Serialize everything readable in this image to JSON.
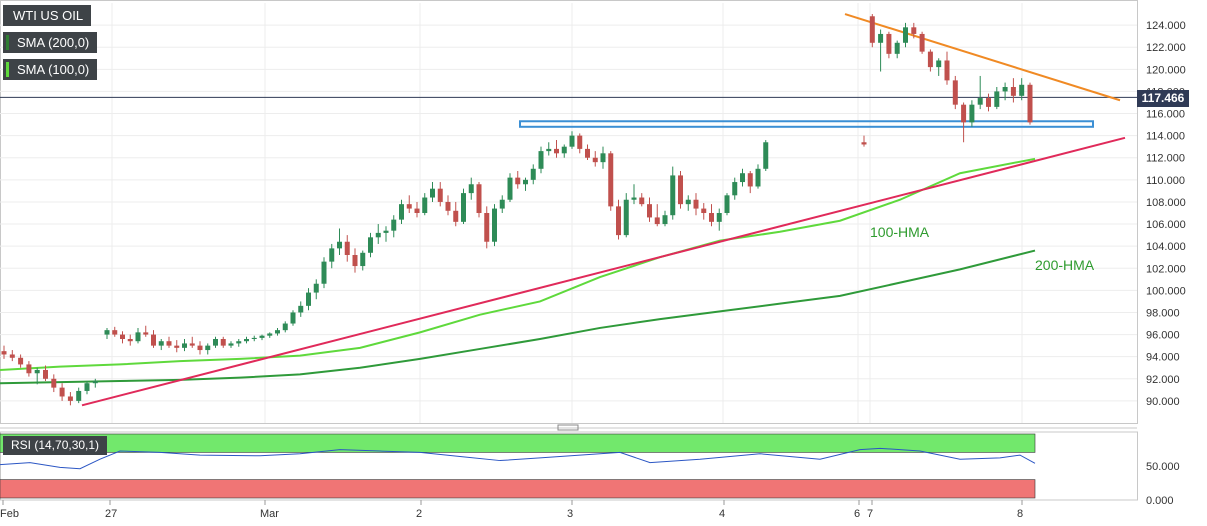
{
  "legend": {
    "symbol": "WTI US OIL",
    "sma200": "SMA (200,0)",
    "sma100": "SMA (100,0)",
    "sma200_color": "#2f7d32",
    "sma100_color": "#5fd93c"
  },
  "current_price": "117.466",
  "rsi_label": "RSI (14,70,30,1)",
  "annotations": {
    "hma100": "100-HMA",
    "hma200": "200-HMA"
  },
  "colors": {
    "up": "#2e8b57",
    "down": "#c0504d",
    "support_zone": "#3b8fd4",
    "resistance_line": "#f08a24",
    "trend_line": "#e02a5a",
    "rsi_line": "#2b56c4",
    "rsi_overbought": "#72e86c",
    "rsi_oversold": "#f07575"
  },
  "chart_data": [
    {
      "type": "line",
      "title": "WTI US OIL",
      "ylim": [
        88.0,
        126.0
      ],
      "y_ticks": [
        "124.000",
        "122.000",
        "120.000",
        "118.000",
        "116.000",
        "114.000",
        "112.000",
        "110.000",
        "108.000",
        "106.000",
        "104.000",
        "102.000",
        "100.000",
        "98.000",
        "96.000",
        "94.000",
        "92.000",
        "90.000"
      ],
      "x_ticks": [
        "Feb",
        "27",
        "Mar",
        "2",
        "3",
        "4",
        "6",
        "7",
        "8"
      ],
      "series": [
        {
          "name": "100-HMA",
          "x": [
            0,
            60,
            120,
            180,
            240,
            300,
            360,
            420,
            480,
            540,
            600,
            660,
            720,
            780,
            840,
            900,
            960,
            1035
          ],
          "values": [
            92.8,
            93.1,
            93.3,
            93.6,
            93.8,
            94.1,
            94.8,
            96.2,
            97.8,
            99.0,
            101.2,
            103.0,
            104.5,
            105.3,
            106.3,
            108.2,
            110.6,
            111.9
          ]
        },
        {
          "name": "200-HMA",
          "x": [
            0,
            60,
            120,
            180,
            240,
            300,
            360,
            420,
            480,
            540,
            600,
            660,
            720,
            780,
            840,
            900,
            960,
            1035
          ],
          "values": [
            91.6,
            91.7,
            91.8,
            91.9,
            92.1,
            92.4,
            93.0,
            93.8,
            94.7,
            95.6,
            96.6,
            97.4,
            98.1,
            98.8,
            99.5,
            100.7,
            101.9,
            103.6
          ]
        },
        {
          "name": "RSI",
          "x": [
            0,
            30,
            60,
            80,
            100,
            120,
            160,
            200,
            260,
            300,
            340,
            380,
            420,
            460,
            500,
            540,
            580,
            620,
            650,
            700,
            760,
            820,
            860,
            880,
            920,
            960,
            1000,
            1020,
            1035
          ],
          "values": [
            52,
            55,
            48,
            46,
            60,
            72,
            70,
            66,
            65,
            68,
            74,
            72,
            70,
            64,
            58,
            62,
            66,
            70,
            55,
            60,
            68,
            60,
            74,
            76,
            72,
            60,
            62,
            66,
            54
          ]
        }
      ],
      "candles": [
        [
          94.5,
          95.0,
          93.8,
          94.2
        ],
        [
          94.2,
          94.6,
          93.6,
          93.9
        ],
        [
          93.9,
          94.2,
          93.0,
          93.3
        ],
        [
          93.3,
          93.6,
          92.2,
          92.5
        ],
        [
          92.5,
          93.0,
          91.5,
          92.8
        ],
        [
          92.8,
          93.2,
          91.8,
          92.0
        ],
        [
          92.0,
          92.4,
          90.8,
          91.2
        ],
        [
          91.2,
          91.6,
          90.0,
          90.4
        ],
        [
          90.4,
          90.8,
          89.6,
          90.0
        ],
        [
          90.0,
          91.2,
          89.8,
          90.9
        ],
        [
          90.9,
          91.8,
          90.6,
          91.6
        ],
        [
          91.6,
          92.0,
          91.2,
          91.8
        ],
        [
          96.0,
          96.6,
          95.6,
          96.4
        ],
        [
          96.4,
          96.7,
          95.8,
          96.0
        ],
        [
          96.0,
          96.3,
          95.2,
          95.6
        ],
        [
          95.6,
          96.0,
          95.0,
          95.4
        ],
        [
          95.4,
          96.6,
          95.2,
          96.2
        ],
        [
          96.2,
          96.8,
          95.8,
          96.0
        ],
        [
          96.0,
          96.4,
          94.8,
          95.0
        ],
        [
          95.0,
          95.6,
          94.6,
          95.4
        ],
        [
          95.4,
          95.8,
          94.8,
          95.0
        ],
        [
          95.0,
          95.5,
          94.4,
          94.8
        ],
        [
          94.8,
          95.6,
          94.5,
          95.2
        ],
        [
          95.2,
          95.8,
          94.8,
          95.0
        ],
        [
          95.0,
          95.4,
          94.2,
          94.6
        ],
        [
          94.6,
          95.2,
          94.2,
          95.0
        ],
        [
          95.0,
          95.8,
          94.8,
          95.6
        ],
        [
          95.6,
          95.8,
          94.8,
          95.0
        ],
        [
          95.0,
          95.4,
          94.8,
          95.2
        ],
        [
          95.2,
          95.6,
          94.9,
          95.4
        ],
        [
          95.4,
          95.8,
          95.2,
          95.6
        ],
        [
          95.6,
          95.9,
          95.4,
          95.7
        ],
        [
          95.7,
          96.0,
          95.5,
          95.9
        ],
        [
          95.9,
          96.2,
          95.7,
          96.1
        ],
        [
          96.1,
          96.6,
          95.9,
          96.4
        ],
        [
          96.4,
          97.2,
          96.2,
          97.0
        ],
        [
          97.0,
          98.2,
          96.8,
          98.0
        ],
        [
          98.0,
          99.0,
          97.6,
          98.6
        ],
        [
          98.6,
          100.2,
          98.2,
          99.8
        ],
        [
          99.8,
          101.0,
          99.2,
          100.6
        ],
        [
          100.6,
          103.0,
          100.2,
          102.6
        ],
        [
          102.6,
          104.2,
          102.0,
          103.8
        ],
        [
          103.8,
          105.6,
          103.2,
          104.4
        ],
        [
          104.4,
          105.0,
          102.6,
          103.2
        ],
        [
          103.2,
          103.8,
          101.6,
          102.2
        ],
        [
          102.2,
          103.6,
          101.8,
          103.4
        ],
        [
          103.4,
          105.2,
          103.0,
          104.8
        ],
        [
          104.8,
          106.0,
          104.2,
          105.2
        ],
        [
          105.2,
          105.8,
          104.4,
          105.4
        ],
        [
          105.4,
          106.8,
          104.8,
          106.4
        ],
        [
          106.4,
          108.2,
          106.0,
          107.8
        ],
        [
          107.8,
          108.6,
          107.0,
          107.4
        ],
        [
          107.4,
          108.0,
          106.6,
          107.0
        ],
        [
          107.0,
          108.8,
          106.8,
          108.4
        ],
        [
          108.4,
          109.8,
          108.0,
          109.2
        ],
        [
          109.2,
          109.8,
          107.6,
          108.0
        ],
        [
          108.0,
          108.6,
          106.8,
          107.2
        ],
        [
          107.2,
          108.0,
          105.8,
          106.2
        ],
        [
          106.2,
          109.2,
          106.0,
          108.8
        ],
        [
          108.8,
          110.2,
          108.2,
          109.6
        ],
        [
          109.6,
          109.8,
          106.6,
          107.0
        ],
        [
          107.0,
          107.6,
          103.8,
          104.4
        ],
        [
          104.4,
          107.8,
          104.0,
          107.4
        ],
        [
          107.4,
          108.6,
          107.0,
          108.2
        ],
        [
          108.2,
          110.6,
          108.0,
          110.2
        ],
        [
          110.2,
          110.8,
          109.2,
          109.6
        ],
        [
          109.6,
          110.2,
          109.0,
          110.0
        ],
        [
          110.0,
          111.4,
          109.6,
          111.0
        ],
        [
          111.0,
          113.0,
          110.6,
          112.6
        ],
        [
          112.6,
          113.4,
          112.2,
          112.8
        ],
        [
          112.8,
          113.6,
          112.0,
          112.4
        ],
        [
          112.4,
          113.2,
          112.0,
          113.0
        ],
        [
          113.0,
          114.4,
          112.8,
          114.0
        ],
        [
          114.0,
          114.2,
          112.4,
          112.8
        ],
        [
          112.8,
          113.2,
          111.8,
          112.0
        ],
        [
          112.0,
          112.6,
          111.2,
          111.6
        ],
        [
          111.6,
          113.0,
          111.0,
          112.4
        ],
        [
          112.4,
          112.6,
          107.2,
          107.6
        ],
        [
          107.6,
          108.2,
          104.6,
          105.0
        ],
        [
          105.0,
          108.8,
          104.8,
          108.2
        ],
        [
          108.2,
          109.6,
          107.8,
          108.4
        ],
        [
          108.4,
          108.8,
          107.6,
          107.8
        ],
        [
          107.8,
          108.4,
          106.2,
          106.6
        ],
        [
          106.6,
          107.8,
          105.8,
          106.0
        ],
        [
          106.0,
          107.2,
          105.8,
          106.8
        ],
        [
          106.8,
          111.2,
          106.4,
          110.4
        ],
        [
          110.4,
          110.8,
          107.4,
          107.8
        ],
        [
          107.8,
          108.6,
          107.2,
          108.2
        ],
        [
          108.2,
          108.8,
          106.8,
          107.4
        ],
        [
          107.4,
          107.9,
          106.4,
          107.0
        ],
        [
          107.0,
          107.8,
          105.8,
          106.2
        ],
        [
          106.2,
          107.4,
          105.4,
          107.0
        ],
        [
          107.0,
          108.8,
          106.8,
          108.6
        ],
        [
          108.6,
          110.2,
          108.2,
          109.8
        ],
        [
          109.8,
          111.0,
          109.4,
          110.6
        ],
        [
          110.6,
          110.8,
          108.8,
          109.4
        ],
        [
          109.4,
          111.4,
          109.2,
          111.0
        ],
        [
          111.0,
          113.6,
          110.8,
          113.4
        ],
        [
          113.4,
          114.0,
          113.0,
          113.2
        ],
        [
          124.8,
          125.0,
          122.0,
          122.4
        ],
        [
          122.4,
          123.6,
          119.8,
          123.2
        ],
        [
          123.2,
          123.4,
          121.0,
          121.4
        ],
        [
          121.4,
          122.6,
          121.0,
          122.4
        ],
        [
          122.4,
          124.2,
          122.0,
          123.8
        ],
        [
          123.8,
          124.2,
          122.8,
          123.2
        ],
        [
          123.2,
          123.4,
          121.4,
          121.6
        ],
        [
          121.6,
          121.8,
          119.8,
          120.2
        ],
        [
          120.2,
          121.0,
          119.4,
          120.8
        ],
        [
          120.8,
          121.6,
          118.6,
          119.0
        ],
        [
          119.0,
          119.4,
          116.4,
          116.8
        ],
        [
          116.8,
          117.0,
          113.4,
          115.2
        ],
        [
          115.2,
          117.2,
          114.8,
          116.8
        ],
        [
          116.8,
          119.4,
          116.4,
          117.4
        ],
        [
          117.4,
          117.8,
          116.2,
          116.6
        ],
        [
          116.6,
          118.4,
          116.4,
          118.0
        ],
        [
          118.0,
          118.8,
          117.2,
          118.4
        ],
        [
          118.4,
          119.2,
          117.0,
          117.6
        ],
        [
          117.6,
          119.2,
          117.2,
          118.6
        ],
        [
          118.6,
          118.8,
          115.0,
          115.2
        ],
        [
          115.2,
          116.6,
          115.0,
          116.4
        ]
      ],
      "resistance_line": {
        "from": [
          845,
          125.0
        ],
        "to": [
          1120,
          117.2
        ]
      },
      "trend_line": {
        "from": [
          82,
          89.6
        ],
        "to": [
          1125,
          113.8
        ]
      },
      "support_zone": {
        "x0": 520,
        "x1": 1093,
        "y_low": 114.8,
        "y_high": 115.3
      }
    },
    {
      "type": "line",
      "title": "RSI (14,70,30,1)",
      "ylim": [
        0,
        100
      ],
      "y_ticks": [
        "50.000",
        "0.000"
      ],
      "overbought": 70,
      "oversold": 30
    }
  ]
}
